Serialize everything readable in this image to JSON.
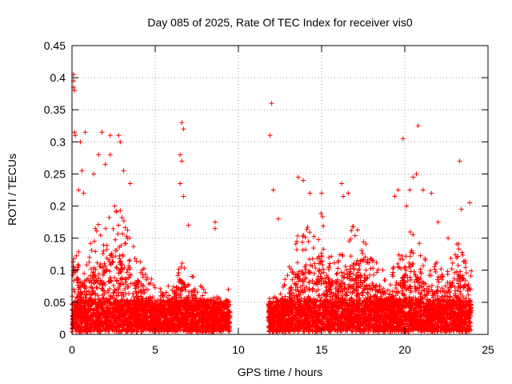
{
  "chart_data": {
    "type": "scatter",
    "title": "Day 085 of 2025, Rate Of TEC Index for receiver vis0",
    "xlabel": "GPS time / hours",
    "ylabel": "ROTI / TECUs",
    "xlim": [
      0,
      25
    ],
    "ylim": [
      0,
      0.45
    ],
    "x_ticks": [
      0,
      5,
      10,
      15,
      20,
      25
    ],
    "x_tick_labels": [
      "0",
      "5",
      "10",
      "15",
      "20",
      "25"
    ],
    "y_ticks": [
      0,
      0.05,
      0.1,
      0.15,
      0.2,
      0.25,
      0.3,
      0.35,
      0.4,
      0.45
    ],
    "y_tick_labels": [
      "0",
      "0.05",
      "0.1",
      "0.15",
      "0.2",
      "0.25",
      "0.3",
      "0.35",
      "0.4",
      "0.45"
    ],
    "grid": true,
    "marker": "+",
    "series": [
      {
        "name": "vis0",
        "color": "#ff0000",
        "segments": [
          {
            "x_start": 0.0,
            "x_end": 9.5
          },
          {
            "x_start": 11.8,
            "x_end": 24.0
          }
        ],
        "envelope": [
          [
            0.0,
            0.17
          ],
          [
            0.5,
            0.12
          ],
          [
            1.0,
            0.13
          ],
          [
            1.5,
            0.17
          ],
          [
            2.0,
            0.16
          ],
          [
            2.5,
            0.2
          ],
          [
            3.0,
            0.19
          ],
          [
            3.5,
            0.15
          ],
          [
            4.0,
            0.12
          ],
          [
            4.5,
            0.1
          ],
          [
            5.0,
            0.07
          ],
          [
            5.5,
            0.07
          ],
          [
            6.0,
            0.08
          ],
          [
            6.5,
            0.13
          ],
          [
            7.0,
            0.1
          ],
          [
            7.5,
            0.08
          ],
          [
            8.0,
            0.07
          ],
          [
            8.5,
            0.06
          ],
          [
            9.0,
            0.05
          ],
          [
            9.5,
            0.05
          ],
          [
            11.8,
            0.05
          ],
          [
            12.5,
            0.07
          ],
          [
            13.0,
            0.1
          ],
          [
            13.5,
            0.15
          ],
          [
            14.0,
            0.16
          ],
          [
            14.5,
            0.18
          ],
          [
            15.0,
            0.19
          ],
          [
            15.5,
            0.12
          ],
          [
            16.0,
            0.12
          ],
          [
            16.5,
            0.15
          ],
          [
            17.0,
            0.17
          ],
          [
            17.5,
            0.15
          ],
          [
            18.0,
            0.12
          ],
          [
            18.5,
            0.1
          ],
          [
            19.0,
            0.09
          ],
          [
            19.5,
            0.11
          ],
          [
            20.0,
            0.15
          ],
          [
            20.5,
            0.17
          ],
          [
            21.0,
            0.13
          ],
          [
            21.5,
            0.1
          ],
          [
            22.0,
            0.11
          ],
          [
            22.5,
            0.1
          ],
          [
            23.0,
            0.14
          ],
          [
            23.5,
            0.15
          ],
          [
            24.0,
            0.1
          ]
        ],
        "outliers": [
          [
            0.1,
            0.405
          ],
          [
            0.1,
            0.395
          ],
          [
            0.1,
            0.385
          ],
          [
            0.15,
            0.38
          ],
          [
            0.15,
            0.315
          ],
          [
            0.2,
            0.31
          ],
          [
            0.5,
            0.3
          ],
          [
            0.8,
            0.315
          ],
          [
            1.8,
            0.315
          ],
          [
            2.3,
            0.31
          ],
          [
            2.8,
            0.31
          ],
          [
            2.9,
            0.3
          ],
          [
            2.3,
            0.28
          ],
          [
            1.6,
            0.28
          ],
          [
            2.0,
            0.265
          ],
          [
            1.3,
            0.25
          ],
          [
            0.6,
            0.255
          ],
          [
            0.4,
            0.225
          ],
          [
            0.7,
            0.22
          ],
          [
            3.1,
            0.255
          ],
          [
            3.5,
            0.235
          ],
          [
            6.6,
            0.33
          ],
          [
            6.7,
            0.32
          ],
          [
            6.5,
            0.28
          ],
          [
            6.6,
            0.27
          ],
          [
            6.5,
            0.235
          ],
          [
            6.7,
            0.215
          ],
          [
            8.6,
            0.175
          ],
          [
            8.6,
            0.165
          ],
          [
            7.0,
            0.17
          ],
          [
            9.4,
            0.07
          ],
          [
            12.0,
            0.36
          ],
          [
            11.9,
            0.31
          ],
          [
            12.1,
            0.225
          ],
          [
            12.4,
            0.18
          ],
          [
            13.9,
            0.24
          ],
          [
            13.6,
            0.245
          ],
          [
            14.3,
            0.22
          ],
          [
            15.0,
            0.22
          ],
          [
            16.2,
            0.235
          ],
          [
            16.6,
            0.22
          ],
          [
            16.3,
            0.215
          ],
          [
            19.9,
            0.305
          ],
          [
            20.8,
            0.325
          ],
          [
            20.7,
            0.25
          ],
          [
            20.5,
            0.245
          ],
          [
            20.3,
            0.225
          ],
          [
            21.1,
            0.225
          ],
          [
            21.6,
            0.22
          ],
          [
            19.4,
            0.215
          ],
          [
            19.6,
            0.225
          ],
          [
            20.1,
            0.2
          ],
          [
            23.3,
            0.27
          ],
          [
            23.9,
            0.205
          ],
          [
            23.4,
            0.195
          ],
          [
            22.0,
            0.175
          ],
          [
            22.6,
            0.15
          ]
        ]
      }
    ]
  }
}
